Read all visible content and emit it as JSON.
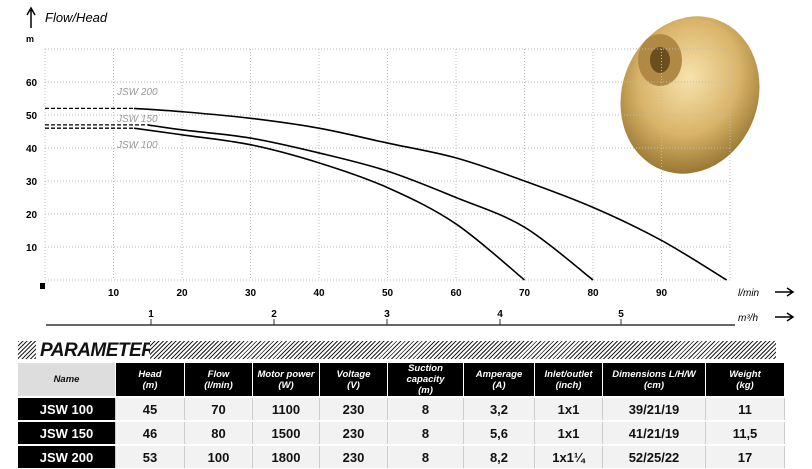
{
  "chart_data": {
    "type": "line",
    "title": "Flow/Head",
    "ylabel": "m",
    "xlabel": "l/min",
    "x2label": "m³/h",
    "xlim": [
      0,
      100
    ],
    "ylim": [
      0,
      70
    ],
    "xticks": [
      10,
      20,
      30,
      40,
      50,
      60,
      70,
      80,
      90
    ],
    "yticks": [
      10,
      20,
      30,
      40,
      50,
      60
    ],
    "x2ticks": [
      1,
      2,
      3,
      4,
      5
    ],
    "grid": true,
    "series": [
      {
        "name": "JSW 200",
        "dashed_until": 13,
        "x": [
          0,
          13,
          20,
          30,
          40,
          50,
          60,
          70,
          80,
          90,
          99.5
        ],
        "y": [
          52,
          52,
          51,
          49,
          46,
          41.5,
          37,
          30,
          22,
          12,
          0
        ]
      },
      {
        "name": "JSW 150",
        "dashed_until": 15,
        "x": [
          0,
          15,
          20,
          30,
          40,
          50,
          60,
          70,
          80
        ],
        "y": [
          47,
          47,
          45.5,
          43,
          38.5,
          33,
          25,
          16,
          0
        ]
      },
      {
        "name": "JSW 100",
        "dashed_until": 13,
        "x": [
          0,
          13,
          20,
          30,
          40,
          50,
          60,
          70
        ],
        "y": [
          46,
          46,
          44,
          41,
          35.5,
          28,
          17,
          0
        ]
      }
    ]
  },
  "params": {
    "title": "PARAMETERS",
    "headers": [
      [
        "Name",
        ""
      ],
      [
        "Head",
        "(m)"
      ],
      [
        "Flow",
        "(l/min)"
      ],
      [
        "Motor power",
        "(W)"
      ],
      [
        "Voltage",
        "(V)"
      ],
      [
        "Suction capacity",
        "(m)"
      ],
      [
        "Amperage",
        "(A)"
      ],
      [
        "Inlet/outlet",
        "(inch)"
      ],
      [
        "Dimensions L/H/W",
        "(cm)"
      ],
      [
        "Weight",
        "(kg)"
      ]
    ],
    "rows": [
      [
        "JSW 100",
        "45",
        "70",
        "1100",
        "230",
        "8",
        "3,2",
        "1x1",
        "39/21/19",
        "11"
      ],
      [
        "JSW 150",
        "46",
        "80",
        "1500",
        "230",
        "8",
        "5,6",
        "1x1",
        "41/21/19",
        "11,5"
      ],
      [
        "JSW 200",
        "53",
        "100",
        "1800",
        "230",
        "8",
        "8,2",
        "1x1¼",
        "52/25/22",
        "17"
      ]
    ]
  }
}
